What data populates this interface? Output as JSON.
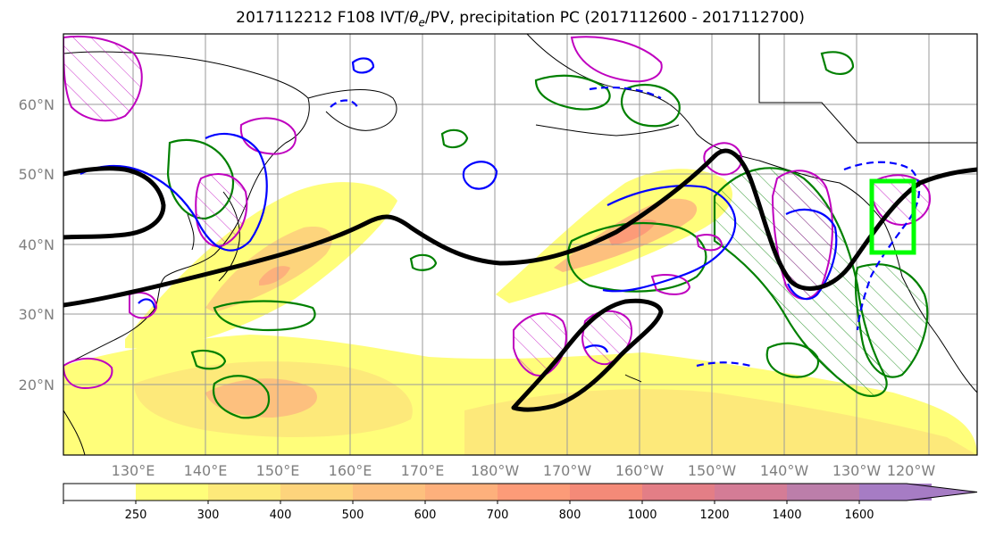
{
  "figure": {
    "title_prefix": "2017112212 F108 IVT/",
    "title_theta": "θ",
    "title_sub": "e",
    "title_suffix": "/PV, precipitation PC (2017112600 - 2017112700)"
  },
  "lat_labels": [
    "60°N",
    "50°N",
    "40°N",
    "30°N",
    "20°N"
  ],
  "lon_labels": [
    "130°E",
    "140°E",
    "150°E",
    "160°E",
    "170°E",
    "180°W",
    "170°W",
    "160°W",
    "150°W",
    "140°W",
    "130°W",
    "120°W"
  ],
  "colorbar": {
    "ticks": [
      "250",
      "300",
      "400",
      "500",
      "600",
      "700",
      "800",
      "1000",
      "1200",
      "1400",
      "1600"
    ],
    "colors": [
      "#ffffff",
      "#fffe7a",
      "#fde97a",
      "#fdd47c",
      "#fdc07e",
      "#fdb07c",
      "#fc9b78",
      "#f48a78",
      "#e37e86",
      "#d47c96",
      "#bc7eaa",
      "#a67cc4"
    ]
  },
  "colors": {
    "coast": "#000000",
    "theta_contour": "#000000",
    "pv_positive": "#0000ff",
    "precip_pc": "#008000",
    "magenta_contour": "#bf00bf",
    "target_box": "#00ff00"
  }
}
